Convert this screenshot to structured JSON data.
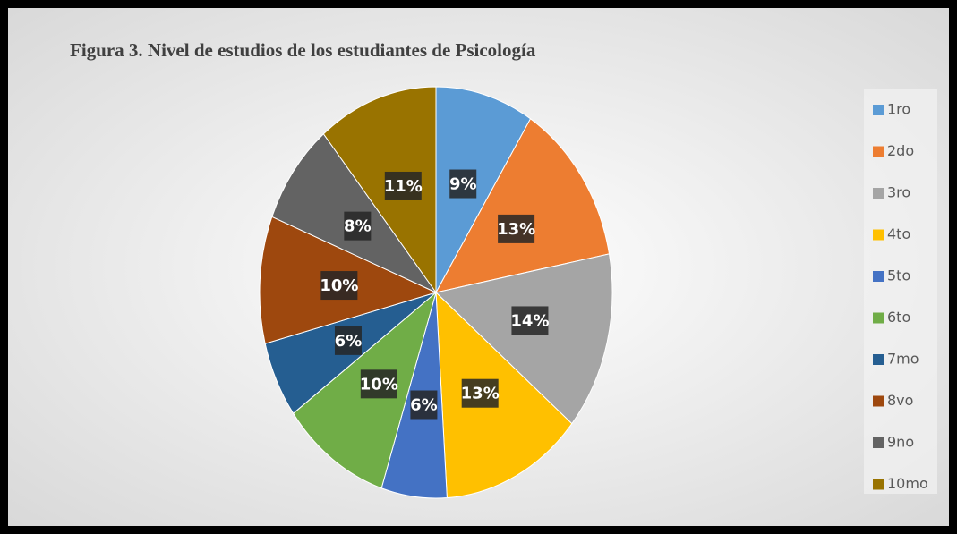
{
  "chart_data": {
    "type": "pie",
    "title": "Figura 3. Nivel de estudios de los estudiantes de Psicología",
    "categories": [
      "1ro",
      "2do",
      "3ro",
      "4to",
      "5to",
      "6to",
      "7mo",
      "8vo",
      "9no",
      "10mo"
    ],
    "values": [
      9,
      13,
      14,
      13,
      6,
      10,
      6,
      10,
      8,
      11
    ],
    "value_labels": [
      "9%",
      "13%",
      "14%",
      "13%",
      "6%",
      "10%",
      "6%",
      "10%",
      "8%",
      "11%"
    ],
    "colors": [
      "#5b9bd5",
      "#ed7d31",
      "#a5a5a5",
      "#ffc000",
      "#4472c4",
      "#70ad47",
      "#255e91",
      "#9e480e",
      "#636363",
      "#997300"
    ],
    "legend": "right"
  }
}
